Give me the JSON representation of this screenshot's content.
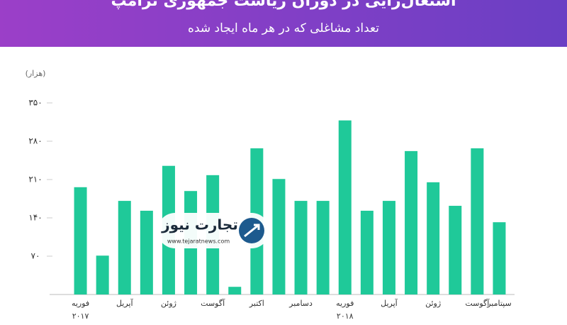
{
  "chart_data": {
    "type": "bar",
    "title": "اشتغال‌زایی در دوران ریاست جمهوری ترامپ",
    "subtitle": "تعداد مشاغلی که در هر ماه ایجاد شده",
    "y_unit": "(هزار)",
    "categories": [
      "فوریه",
      null,
      "آپریل",
      null,
      "ژوئن",
      null,
      "آگوست",
      null,
      "اکتبر",
      null,
      "دسامبر",
      null,
      "فوریه",
      null,
      "آپریل",
      null,
      "ژوئن",
      null,
      "آگوست",
      "سپتامبر"
    ],
    "category_years": [
      "۲۰۱۷",
      null,
      null,
      null,
      null,
      null,
      null,
      null,
      null,
      null,
      null,
      null,
      "۲۰۱۸",
      null,
      null,
      null,
      null,
      null,
      null,
      null
    ],
    "values": [
      196,
      71,
      171,
      153,
      235,
      189,
      218,
      14,
      267,
      211,
      171,
      171,
      318,
      153,
      171,
      262,
      205,
      162,
      267,
      132
    ],
    "color": "#1fc999",
    "ylim": [
      0,
      350
    ],
    "yticks": [
      {
        "value": 70,
        "label": "۷۰"
      },
      {
        "value": 140,
        "label": "۱۴۰"
      },
      {
        "value": 210,
        "label": "۲۱۰"
      },
      {
        "value": 280,
        "label": "۲۸۰"
      },
      {
        "value": 350,
        "label": "۳۵۰"
      }
    ],
    "grid": false,
    "watermark": {
      "name": "تجارت نیوز",
      "url": "www.tejaratnews.com"
    }
  }
}
